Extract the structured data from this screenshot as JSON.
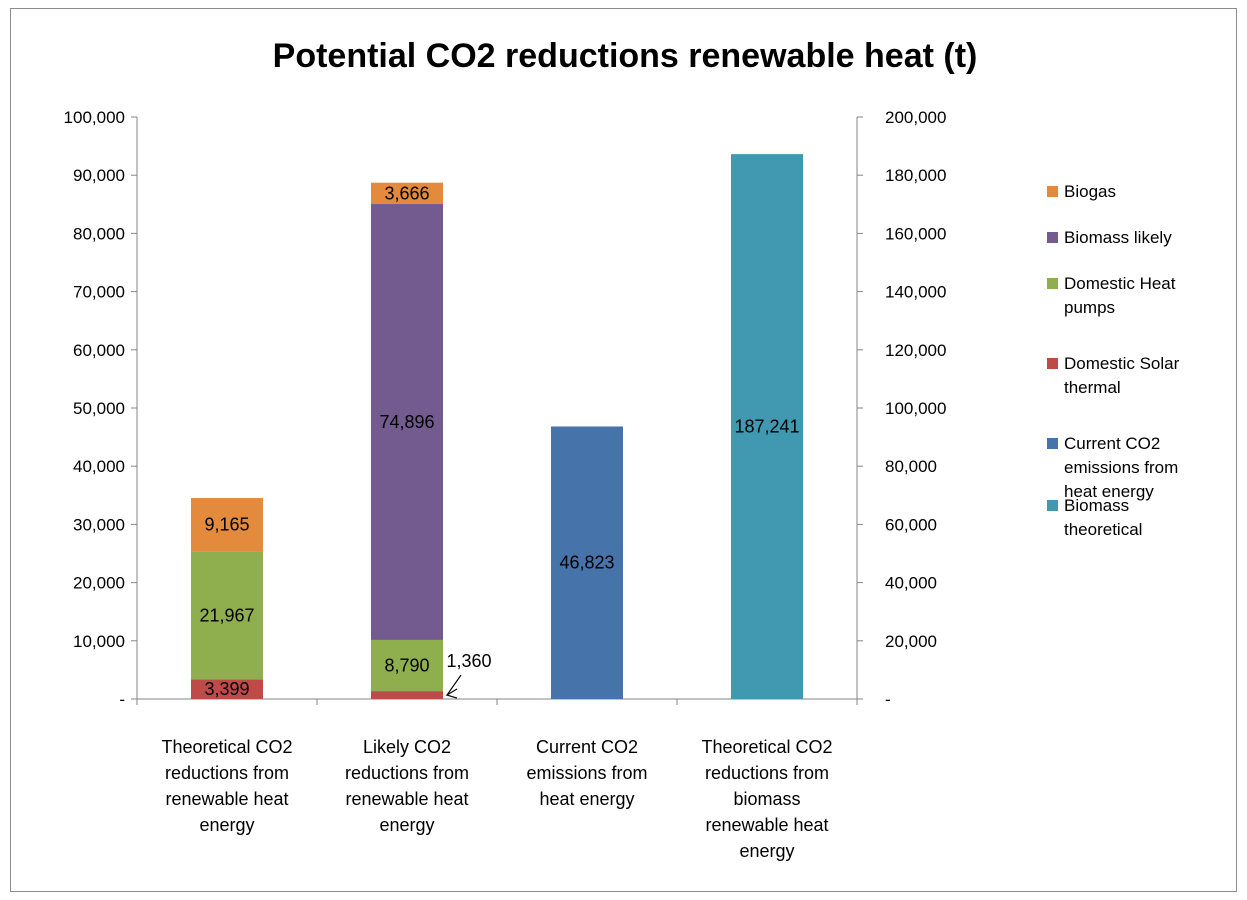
{
  "chart_data": {
    "type": "bar",
    "title": "Potential CO2 reductions renewable heat (t)",
    "categories": [
      [
        "Theoretical CO2",
        "reductions from",
        "renewable heat",
        "energy"
      ],
      [
        "Likely CO2",
        "reductions from",
        "renewable heat",
        "energy"
      ],
      [
        "Current CO2",
        "emissions from",
        "heat energy"
      ],
      [
        "Theoretical CO2",
        "reductions from",
        "biomass",
        "renewable heat",
        "energy"
      ]
    ],
    "y_left": {
      "min": 0,
      "max": 100000,
      "step": 10000,
      "ticks": [
        "-",
        "10,000",
        "20,000",
        "30,000",
        "40,000",
        "50,000",
        "60,000",
        "70,000",
        "80,000",
        "90,000",
        "100,000"
      ]
    },
    "y_right": {
      "min": 0,
      "max": 200000,
      "step": 20000,
      "ticks": [
        "-",
        "20,000",
        "40,000",
        "60,000",
        "80,000",
        "100,000",
        "120,000",
        "140,000",
        "160,000",
        "180,000",
        "200,000"
      ]
    },
    "series": [
      {
        "name": "Domestic Solar thermal",
        "color": "#be4b48",
        "axis": "left",
        "values": [
          3399,
          1360,
          null,
          null
        ],
        "labels": [
          "3,399",
          "1,360",
          "",
          ""
        ]
      },
      {
        "name": "Domestic Heat pumps",
        "color": "#8faf4e",
        "axis": "left",
        "values": [
          21967,
          8790,
          null,
          null
        ],
        "labels": [
          "21,967",
          "8,790",
          "",
          ""
        ]
      },
      {
        "name": "Biomass likely",
        "color": "#735a8f",
        "axis": "left",
        "values": [
          null,
          74896,
          null,
          null
        ],
        "labels": [
          "",
          "74,896",
          "",
          ""
        ]
      },
      {
        "name": "Biogas",
        "color": "#e38a3c",
        "axis": "left",
        "values": [
          9165,
          3666,
          null,
          null
        ],
        "labels": [
          "9,165",
          "3,666",
          "",
          ""
        ]
      },
      {
        "name": "Current CO2 emissions from heat energy",
        "color": "#4673a9",
        "axis": "left",
        "values": [
          null,
          null,
          46823,
          null
        ],
        "labels": [
          "",
          "",
          "46,823",
          ""
        ]
      },
      {
        "name": "Biomass theoretical",
        "color": "#4099b0",
        "axis": "right",
        "values": [
          null,
          null,
          null,
          187241
        ],
        "labels": [
          "",
          "",
          "",
          "187,241"
        ]
      }
    ],
    "legend": {
      "placement": "right",
      "entries": [
        {
          "lines": [
            "Biogas"
          ],
          "color": "#e38a3c"
        },
        {
          "lines": [
            "Biomass likely"
          ],
          "color": "#735a8f"
        },
        {
          "lines": [
            "Domestic Heat",
            "pumps"
          ],
          "color": "#8faf4e"
        },
        {
          "lines": [
            "Domestic Solar",
            "thermal"
          ],
          "color": "#be4b48"
        },
        {
          "lines": [
            "Current CO2",
            "emissions from",
            "heat energy"
          ],
          "color": "#4673a9"
        },
        {
          "lines": [
            "Biomass",
            "theoretical"
          ],
          "color": "#4099b0"
        }
      ]
    },
    "annotations": [
      {
        "text": "1,360",
        "points_to": "Likely CO2 reductions from renewable heat energy / Domestic Solar thermal"
      }
    ],
    "grid": false
  }
}
